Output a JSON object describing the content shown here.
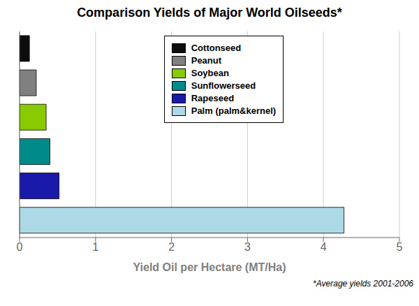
{
  "chart_data": {
    "type": "bar",
    "orientation": "horizontal",
    "title": "Comparison Yields of Major World Oilseeds*",
    "xlabel": "Yield Oil per Hectare (MT/Ha)",
    "annotations": [
      "*Average yields 2001-2006"
    ],
    "categories": [
      "Cottonseed",
      "Peanut",
      "Soybean",
      "Sunflowerseed",
      "Rapeseed",
      "Palm (palm&kernel)"
    ],
    "values": [
      0.13,
      0.22,
      0.35,
      0.4,
      0.52,
      4.27
    ],
    "colors": [
      "#0d0d0d",
      "#808080",
      "#88cc00",
      "#008B8B",
      "#1a1aaa",
      "#add8e6"
    ],
    "xlim": [
      0,
      5
    ],
    "xticks": [
      0,
      1,
      2,
      3,
      4,
      5
    ],
    "grid": true,
    "legend": "upper center",
    "tick_labels": "x"
  }
}
